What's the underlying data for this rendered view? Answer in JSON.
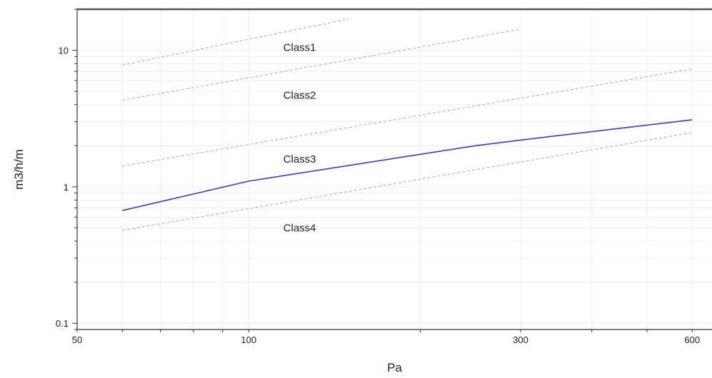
{
  "chart_data": {
    "type": "line",
    "xlabel": "Pa",
    "ylabel": "m3/h/m",
    "xscale": "log",
    "yscale": "log",
    "xlim": [
      50,
      650
    ],
    "ylim": [
      0.09,
      20
    ],
    "grid": true,
    "x_ticks": [
      {
        "value": 50,
        "label": "50"
      },
      {
        "value": 100,
        "label": "100"
      },
      {
        "value": 300,
        "label": "300"
      },
      {
        "value": 600,
        "label": "600"
      }
    ],
    "y_ticks": [
      {
        "value": 0.1,
        "label": "0.1"
      },
      {
        "value": 1,
        "label": "1"
      },
      {
        "value": 10,
        "label": "10"
      }
    ],
    "boundaries": [
      {
        "x": [
          60,
          150
        ],
        "y": [
          7.8,
          17.0
        ],
        "color": "#b0b0b0",
        "style": "dashed"
      },
      {
        "x": [
          60,
          300
        ],
        "y": [
          4.3,
          14.3
        ],
        "color": "#b0b0b0",
        "style": "dashed"
      },
      {
        "x": [
          60,
          600
        ],
        "y": [
          1.42,
          7.3
        ],
        "color": "#b0b0b0",
        "style": "dashed"
      },
      {
        "x": [
          60,
          600
        ],
        "y": [
          0.48,
          2.5
        ],
        "color": "#b0b0b0",
        "style": "dashed"
      }
    ],
    "series": [
      {
        "x": [
          60,
          100,
          250,
          300,
          600
        ],
        "y": [
          0.67,
          1.1,
          2.0,
          2.2,
          3.1
        ],
        "color": "#3a3acf",
        "style": "solid"
      }
    ],
    "annotations": [
      {
        "text": "Class1",
        "x": 115,
        "y": 10.5
      },
      {
        "text": "Class2",
        "x": 115,
        "y": 4.7
      },
      {
        "text": "Class3",
        "x": 115,
        "y": 1.6
      },
      {
        "text": "Class4",
        "x": 115,
        "y": 0.5
      }
    ]
  }
}
